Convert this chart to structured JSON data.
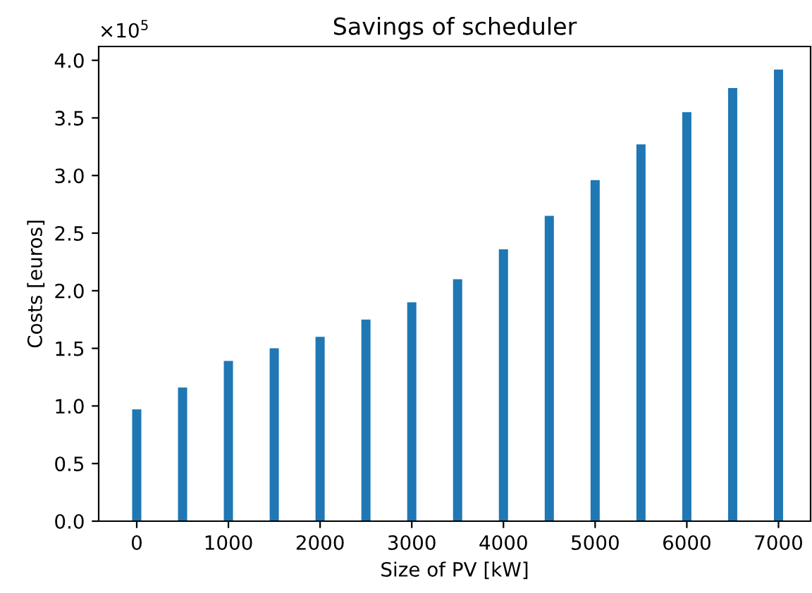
{
  "chart_data": {
    "type": "bar",
    "title": "Savings of scheduler",
    "xlabel": "Size of PV [kW]",
    "ylabel": "Costs [euros]",
    "x": [
      0,
      500,
      1000,
      1500,
      2000,
      2500,
      3000,
      3500,
      4000,
      4500,
      5000,
      5500,
      6000,
      6500,
      7000
    ],
    "values": [
      0.97,
      1.16,
      1.39,
      1.5,
      1.6,
      1.75,
      1.9,
      2.1,
      2.36,
      2.65,
      2.96,
      3.27,
      3.55,
      3.76,
      3.92
    ],
    "color": "#1f77b4",
    "xlim": [
      -415,
      7350
    ],
    "xticks": [
      0,
      1000,
      2000,
      3000,
      4000,
      5000,
      6000,
      7000
    ],
    "ylim": [
      0,
      4.12
    ],
    "yticks": [
      {
        "value": 0,
        "label": "0.0"
      },
      0.5,
      {
        "value": 1,
        "label": "1.0"
      },
      1.5,
      {
        "value": 2,
        "label": "2.0"
      },
      2.5,
      {
        "value": 3,
        "label": "3.0"
      },
      3.5,
      {
        "value": 4,
        "label": "4.0"
      }
    ],
    "annotations": [
      "×10$^{5}$"
    ],
    "grid": false,
    "legend": false
  }
}
